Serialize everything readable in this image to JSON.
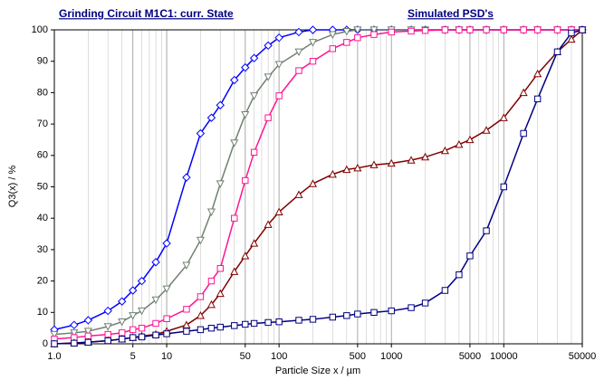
{
  "chart_data": {
    "type": "line",
    "title": "Grinding Circuit M1C1:  curr. State",
    "subtitle": "Simulated PSD's",
    "xlabel": "Particle Size x / µm",
    "ylabel": "Q3(x) / %",
    "xscale": "log",
    "grid": true,
    "x": [
      1,
      1.5,
      2,
      3,
      4,
      5,
      6,
      8,
      10,
      15,
      20,
      25,
      30,
      40,
      50,
      60,
      80,
      100,
      150,
      200,
      300,
      400,
      500,
      700,
      1000,
      1500,
      2000,
      3000,
      4000,
      5000,
      7000,
      10000,
      15000,
      20000,
      30000,
      40000,
      50000
    ],
    "series": [
      {
        "color": "#0000ff",
        "marker": "diamond",
        "values": [
          4.5,
          6,
          7.5,
          10.5,
          13.5,
          17,
          20,
          26,
          32,
          53,
          67,
          72,
          76,
          84,
          88,
          91,
          95,
          97.5,
          99.3,
          100,
          100,
          100,
          100,
          100,
          100,
          100,
          100,
          100,
          100,
          100,
          100,
          100,
          100,
          100,
          100,
          100,
          100
        ]
      },
      {
        "color": "#708070",
        "marker": "triangle-down",
        "values": [
          3,
          3.5,
          4,
          5.5,
          7,
          9,
          10.5,
          14,
          17.5,
          25,
          33,
          42,
          51,
          64,
          73,
          79,
          85,
          89,
          93,
          96,
          98.5,
          99.5,
          100,
          100,
          100,
          100,
          100,
          100,
          100,
          100,
          100,
          100,
          100,
          100,
          100,
          100,
          100
        ]
      },
      {
        "color": "#ff1493",
        "marker": "square",
        "values": [
          1.5,
          2,
          2.5,
          3,
          3.5,
          4.5,
          5,
          6.5,
          8,
          11,
          15,
          20,
          24,
          40,
          52,
          61,
          72,
          79,
          87,
          90,
          94,
          96,
          97.5,
          98.5,
          99.3,
          99.6,
          99.8,
          100,
          100,
          100,
          100,
          100,
          100,
          100,
          100,
          100,
          100
        ]
      },
      {
        "color": "#800000",
        "marker": "triangle-up",
        "values": [
          0,
          0.3,
          0.5,
          1,
          1.5,
          2,
          2.5,
          3,
          4,
          6,
          9,
          12.5,
          16,
          23,
          28,
          32,
          38,
          42,
          47.5,
          51,
          54,
          55.5,
          56,
          57,
          57.5,
          58.5,
          59.5,
          61.5,
          63.5,
          65,
          68,
          72,
          80,
          86,
          93,
          97,
          100
        ]
      },
      {
        "color": "#000080",
        "marker": "square",
        "values": [
          0,
          0.2,
          0.5,
          1,
          1.5,
          2,
          2.2,
          2.8,
          3.2,
          4,
          4.5,
          5,
          5.3,
          5.8,
          6.2,
          6.5,
          6.8,
          7,
          7.5,
          7.8,
          8.5,
          9,
          9.5,
          10,
          10.5,
          11.5,
          13,
          17,
          22,
          28,
          36,
          50,
          67,
          78,
          93,
          99,
          100
        ]
      }
    ],
    "xlim": [
      1,
      50000
    ],
    "xticks": [
      {
        "value": 1,
        "label": "1.0"
      },
      5,
      10,
      50,
      100,
      500,
      1000,
      5000,
      10000,
      50000
    ],
    "ylim": [
      0,
      100
    ],
    "yticks": [
      0,
      10,
      20,
      30,
      40,
      50,
      60,
      70,
      80,
      90,
      100
    ]
  }
}
